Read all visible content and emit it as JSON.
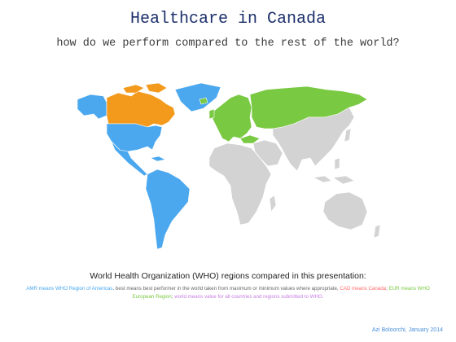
{
  "title": "Healthcare in Canada",
  "subtitle": "how do we perform compared to the rest of the world?",
  "map": {
    "legend_colors": {
      "amr": "#4ba8ef",
      "cad": "#f39a1d",
      "eur": "#7ac943",
      "other": "#d3d3d3",
      "border": "#ffffff"
    }
  },
  "caption": "World Health Organization (WHO) regions compared in this presentation:",
  "legend": {
    "amr": "AMR means WHO Region of Americas",
    "sep1": ", best means best performer in the world taken from maximum or minimum values where appropriate, ",
    "cad": "CAD means Canada",
    "sep2": "; ",
    "eur": "EUR means WHO European Region",
    "sep3": "; ",
    "world": "world means value for all countries and regions submitted to WHO."
  },
  "credit": "Azi Boloorchi, January 2014"
}
